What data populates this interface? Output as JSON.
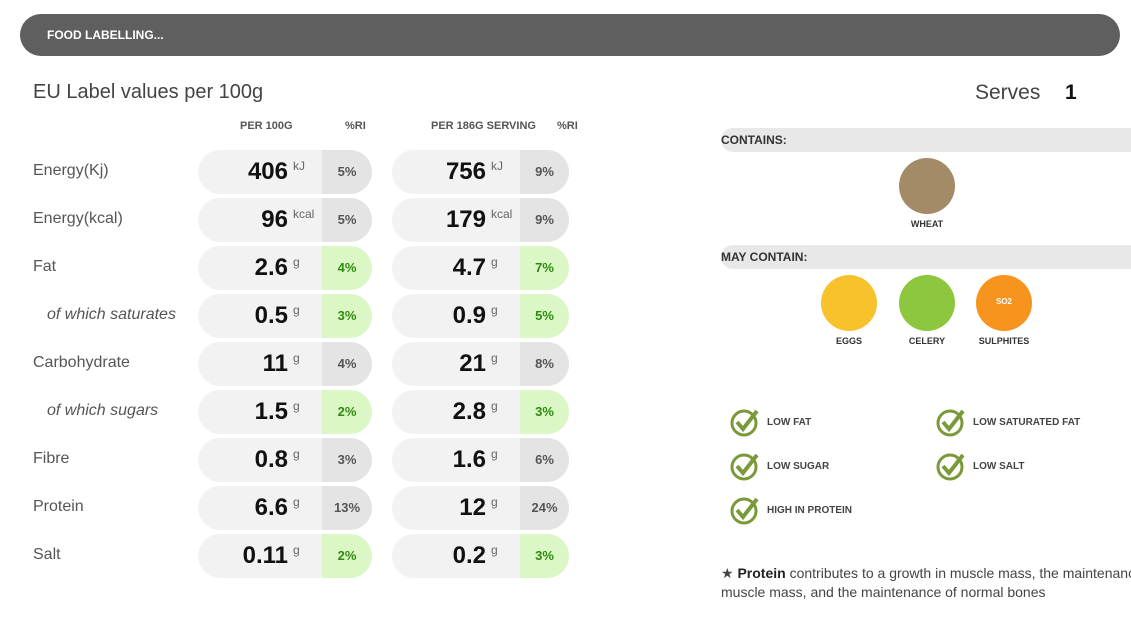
{
  "header": {
    "title": "FOOD LABELLING..."
  },
  "label": {
    "title": "EU Label values per 100g"
  },
  "serves": {
    "label": "Serves",
    "value": "1"
  },
  "table": {
    "headers": [
      "PER 100G",
      "%RI",
      "PER 186G SERVING",
      "%RI"
    ],
    "rows": [
      {
        "name": "Energy(Kj)",
        "sub": false,
        "per100": "406",
        "unit100": "kJ",
        "ri100": "5%",
        "serving": "756",
        "unitServing": "kJ",
        "riServing": "9%",
        "highlight": false
      },
      {
        "name": "Energy(kcal)",
        "sub": false,
        "per100": "96",
        "unit100": "kcal",
        "ri100": "5%",
        "serving": "179",
        "unitServing": "kcal",
        "riServing": "9%",
        "highlight": false
      },
      {
        "name": "Fat",
        "sub": false,
        "per100": "2.6",
        "unit100": "g",
        "ri100": "4%",
        "serving": "4.7",
        "unitServing": "g",
        "riServing": "7%",
        "highlight": true
      },
      {
        "name": "of which saturates",
        "sub": true,
        "per100": "0.5",
        "unit100": "g",
        "ri100": "3%",
        "serving": "0.9",
        "unitServing": "g",
        "riServing": "5%",
        "highlight": true
      },
      {
        "name": "Carbohydrate",
        "sub": false,
        "per100": "11",
        "unit100": "g",
        "ri100": "4%",
        "serving": "21",
        "unitServing": "g",
        "riServing": "8%",
        "highlight": false
      },
      {
        "name": "of which sugars",
        "sub": true,
        "per100": "1.5",
        "unit100": "g",
        "ri100": "2%",
        "serving": "2.8",
        "unitServing": "g",
        "riServing": "3%",
        "highlight": true
      },
      {
        "name": "Fibre",
        "sub": false,
        "per100": "0.8",
        "unit100": "g",
        "ri100": "3%",
        "serving": "1.6",
        "unitServing": "g",
        "riServing": "6%",
        "highlight": false
      },
      {
        "name": "Protein",
        "sub": false,
        "per100": "6.6",
        "unit100": "g",
        "ri100": "13%",
        "serving": "12",
        "unitServing": "g",
        "riServing": "24%",
        "highlight": false
      },
      {
        "name": "Salt",
        "sub": false,
        "per100": "0.11",
        "unit100": "g",
        "ri100": "2%",
        "serving": "0.2",
        "unitServing": "g",
        "riServing": "3%",
        "highlight": true
      }
    ]
  },
  "contains": {
    "title": "CONTAINS:",
    "items": [
      {
        "label": "WHEAT",
        "color": "#a38b68"
      }
    ]
  },
  "may_contain": {
    "title": "MAY CONTAIN:",
    "items": [
      {
        "label": "EGGS",
        "color": "#f7c22c"
      },
      {
        "label": "CELERY",
        "color": "#8dc63f"
      },
      {
        "label": "SULPHITES",
        "color": "#f7941d",
        "icon_text": "SO2"
      }
    ]
  },
  "claims": [
    "LOW FAT",
    "LOW SATURATED FAT",
    "LOW SUGAR",
    "LOW SALT",
    "HIGH IN PROTEIN"
  ],
  "footnote": {
    "star": "★",
    "term": "Protein",
    "lines": [
      "contributes to a growth in muscle mass, the maintenance o",
      "muscle mass, and the maintenance of normal bones"
    ]
  }
}
